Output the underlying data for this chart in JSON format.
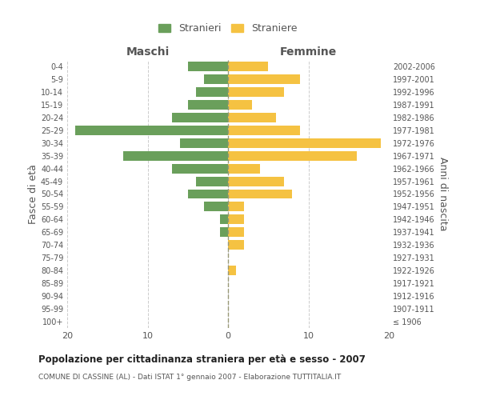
{
  "age_groups": [
    "100+",
    "95-99",
    "90-94",
    "85-89",
    "80-84",
    "75-79",
    "70-74",
    "65-69",
    "60-64",
    "55-59",
    "50-54",
    "45-49",
    "40-44",
    "35-39",
    "30-34",
    "25-29",
    "20-24",
    "15-19",
    "10-14",
    "5-9",
    "0-4"
  ],
  "birth_years": [
    "≤ 1906",
    "1907-1911",
    "1912-1916",
    "1917-1921",
    "1922-1926",
    "1927-1931",
    "1932-1936",
    "1937-1941",
    "1942-1946",
    "1947-1951",
    "1952-1956",
    "1957-1961",
    "1962-1966",
    "1967-1971",
    "1972-1976",
    "1977-1981",
    "1982-1986",
    "1987-1991",
    "1992-1996",
    "1997-2001",
    "2002-2006"
  ],
  "maschi": [
    0,
    0,
    0,
    0,
    0,
    0,
    0,
    1,
    1,
    3,
    5,
    4,
    7,
    13,
    6,
    19,
    7,
    5,
    4,
    3,
    5
  ],
  "femmine": [
    0,
    0,
    0,
    0,
    1,
    0,
    2,
    2,
    2,
    2,
    8,
    7,
    4,
    16,
    19,
    9,
    6,
    3,
    7,
    9,
    5
  ],
  "maschi_color": "#6a9f5b",
  "femmine_color": "#f5c242",
  "bar_height": 0.75,
  "xlim": 20,
  "title": "Popolazione per cittadinanza straniera per età e sesso - 2007",
  "subtitle": "COMUNE DI CASSINE (AL) - Dati ISTAT 1° gennaio 2007 - Elaborazione TUTTITALIA.IT",
  "ylabel_left": "Fasce di età",
  "ylabel_right": "Anni di nascita",
  "xlabel_maschi": "Maschi",
  "xlabel_femmine": "Femmine",
  "legend_maschi": "Stranieri",
  "legend_femmine": "Straniere",
  "background_color": "#ffffff",
  "grid_color": "#cccccc",
  "text_color": "#555555",
  "title_color": "#222222"
}
